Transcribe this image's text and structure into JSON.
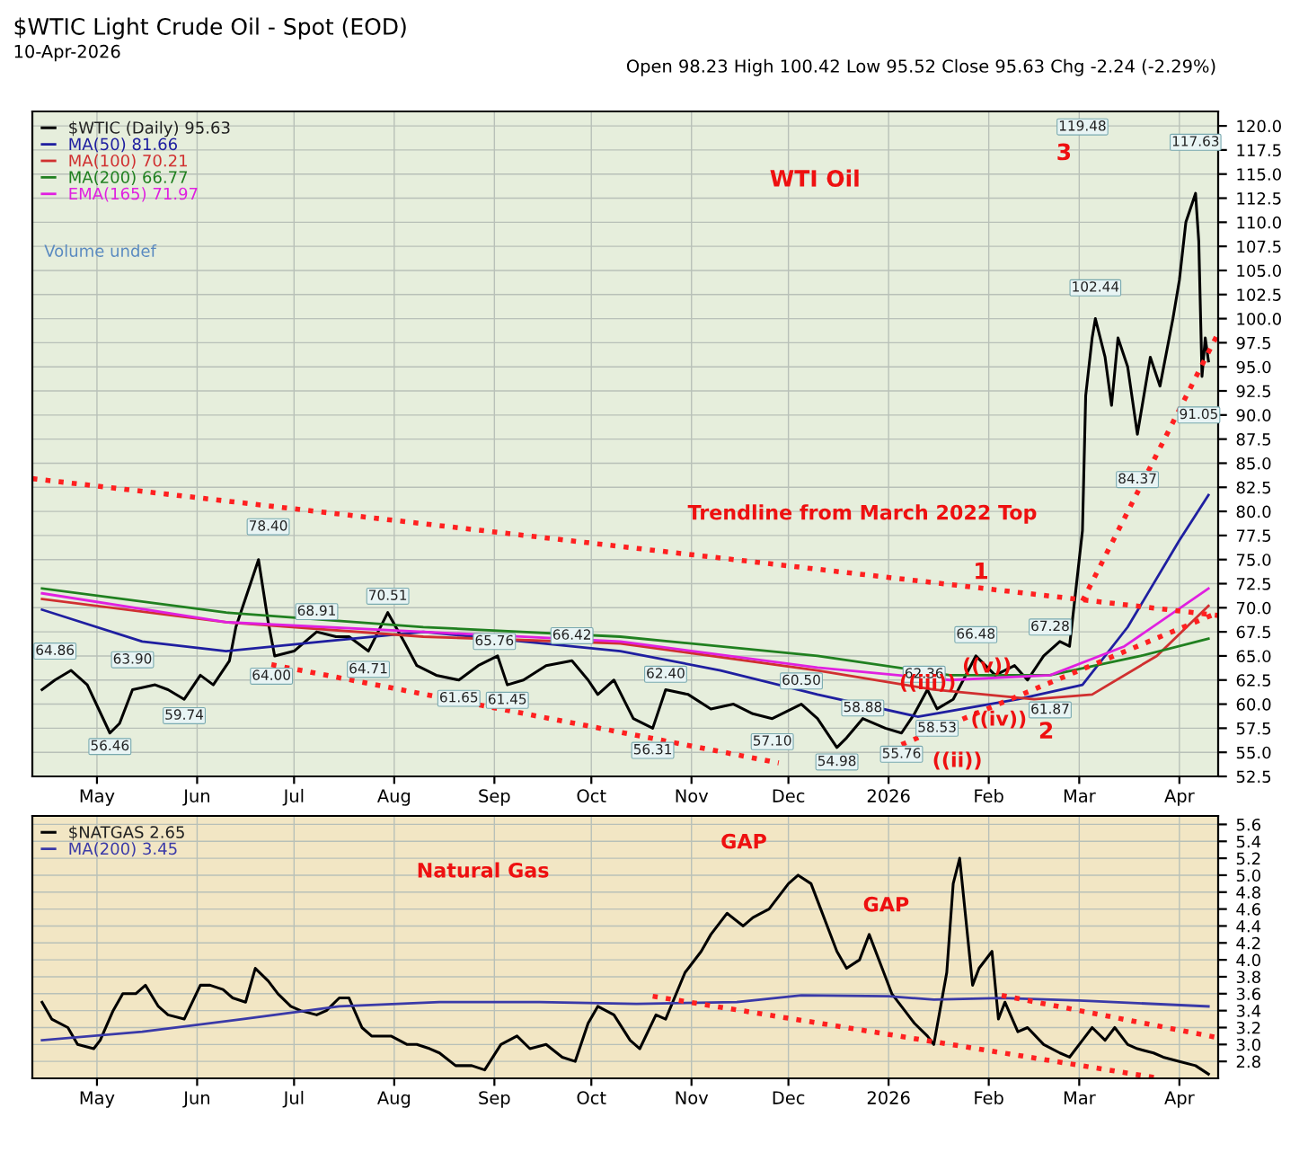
{
  "chart_data": [
    {
      "type": "line",
      "title": "$WTIC Light Crude Oil - Spot (EOD)",
      "subtitle": "10-Apr-2026",
      "xlim": [
        "2025-04-11",
        "2026-04-13"
      ],
      "xticks": [
        {
          "value": "2025-05-01",
          "label": "May"
        },
        {
          "value": "2025-06-01",
          "label": "Jun"
        },
        {
          "value": "2025-07-01",
          "label": "Jul"
        },
        {
          "value": "2025-08-01",
          "label": "Aug"
        },
        {
          "value": "2025-09-01",
          "label": "Sep"
        },
        {
          "value": "2025-10-01",
          "label": "Oct"
        },
        {
          "value": "2025-11-01",
          "label": "Nov"
        },
        {
          "value": "2025-12-01",
          "label": "Dec"
        },
        {
          "value": "2026-01-01",
          "label": "2026"
        },
        {
          "value": "2026-02-01",
          "label": "Feb"
        },
        {
          "value": "2026-03-01",
          "label": "Mar"
        },
        {
          "value": "2026-04-01",
          "label": "Apr"
        }
      ],
      "ylim": [
        52.5,
        121.5
      ],
      "yticks": [
        {
          "value": 52.5,
          "label": "52.5"
        },
        {
          "value": 55,
          "label": "55.0"
        },
        {
          "value": 57.5,
          "label": "57.5"
        },
        {
          "value": 60,
          "label": "60.0"
        },
        {
          "value": 62.5,
          "label": "62.5"
        },
        {
          "value": 65,
          "label": "65.0"
        },
        {
          "value": 67.5,
          "label": "67.5"
        },
        {
          "value": 70,
          "label": "70.0"
        },
        {
          "value": 72.5,
          "label": "72.5"
        },
        {
          "value": 75,
          "label": "75.0"
        },
        {
          "value": 77.5,
          "label": "77.5"
        },
        {
          "value": 80,
          "label": "80.0"
        },
        {
          "value": 82.5,
          "label": "82.5"
        },
        {
          "value": 85,
          "label": "85.0"
        },
        {
          "value": 87.5,
          "label": "87.5"
        },
        {
          "value": 90,
          "label": "90.0"
        },
        {
          "value": 92.5,
          "label": "92.5"
        },
        {
          "value": 95,
          "label": "95.0"
        },
        {
          "value": 97.5,
          "label": "97.5"
        },
        {
          "value": 100,
          "label": "100.0"
        },
        {
          "value": 102.5,
          "label": "102.5"
        },
        {
          "value": 105,
          "label": "105.0"
        },
        {
          "value": 107.5,
          "label": "107.5"
        },
        {
          "value": 110,
          "label": "110.0"
        },
        {
          "value": 112.5,
          "label": "112.5"
        },
        {
          "value": 115,
          "label": "115.0"
        },
        {
          "value": 117.5,
          "label": "117.5"
        },
        {
          "value": 120,
          "label": "120.0"
        }
      ],
      "grid": true,
      "legend": "top left",
      "series": [
        {
          "name": "$WTIC (Daily) 95.63",
          "color": "#000000",
          "x": [
            "2025-04-14",
            "2025-04-18",
            "2025-04-23",
            "2025-04-28",
            "2025-05-05",
            "2025-05-08",
            "2025-05-12",
            "2025-05-19",
            "2025-05-23",
            "2025-05-28",
            "2025-06-02",
            "2025-06-06",
            "2025-06-11",
            "2025-06-13",
            "2025-06-18",
            "2025-06-20",
            "2025-06-23",
            "2025-06-25",
            "2025-07-01",
            "2025-07-08",
            "2025-07-14",
            "2025-07-18",
            "2025-07-24",
            "2025-07-30",
            "2025-08-04",
            "2025-08-08",
            "2025-08-14",
            "2025-08-21",
            "2025-08-27",
            "2025-09-02",
            "2025-09-05",
            "2025-09-10",
            "2025-09-17",
            "2025-09-25",
            "2025-09-30",
            "2025-10-03",
            "2025-10-08",
            "2025-10-14",
            "2025-10-20",
            "2025-10-24",
            "2025-10-31",
            "2025-11-07",
            "2025-11-14",
            "2025-11-20",
            "2025-11-26",
            "2025-12-05",
            "2025-12-10",
            "2025-12-16",
            "2025-12-19",
            "2025-12-24",
            "2025-12-31",
            "2026-01-05",
            "2026-01-09",
            "2026-01-13",
            "2026-01-16",
            "2026-01-21",
            "2026-01-28",
            "2026-02-03",
            "2026-02-09",
            "2026-02-13",
            "2026-02-18",
            "2026-02-23",
            "2026-02-26",
            "2026-03-02",
            "2026-03-03",
            "2026-03-05",
            "2026-03-06",
            "2026-03-09",
            "2026-03-11",
            "2026-03-13",
            "2026-03-16",
            "2026-03-19",
            "2026-03-23",
            "2026-03-26",
            "2026-03-30",
            "2026-04-01",
            "2026-04-03",
            "2026-04-06",
            "2026-04-07",
            "2026-04-08",
            "2026-04-09",
            "2026-04-10"
          ],
          "values": [
            61.5,
            62.5,
            63.5,
            62,
            57,
            58,
            61.5,
            62,
            61.5,
            60.5,
            63,
            62,
            64.5,
            68,
            73,
            75,
            68.5,
            65,
            65.5,
            67.5,
            67,
            67,
            65.5,
            69.5,
            66.5,
            64,
            63,
            62.5,
            64,
            65,
            62,
            62.5,
            64,
            64.5,
            62.5,
            61,
            62.5,
            58.5,
            57.5,
            61.5,
            61,
            59.5,
            60,
            59,
            58.5,
            60,
            58.5,
            55.5,
            56.5,
            58.5,
            57.5,
            57,
            59,
            61.5,
            59.5,
            60.5,
            65,
            63,
            64,
            62.5,
            65,
            66.5,
            66,
            78,
            92,
            98,
            100,
            96,
            91,
            98,
            95,
            88,
            96,
            93,
            100,
            104,
            110,
            113,
            108,
            94,
            98,
            95.6
          ]
        },
        {
          "name": "MA(50) 81.66",
          "color": "#1f1fa0",
          "x": [
            "2025-04-14",
            "2025-05-15",
            "2025-06-10",
            "2025-07-10",
            "2025-08-10",
            "2025-09-10",
            "2025-10-10",
            "2025-11-10",
            "2025-12-10",
            "2026-01-10",
            "2026-02-10",
            "2026-03-02",
            "2026-03-16",
            "2026-04-01",
            "2026-04-10"
          ],
          "values": [
            69.8,
            66.5,
            65.5,
            66.5,
            67.5,
            66.5,
            65.5,
            63.5,
            61,
            58.7,
            60.5,
            62,
            68,
            77,
            81.7
          ]
        },
        {
          "name": "MA(100) 70.21",
          "color": "#d03030",
          "x": [
            "2025-04-14",
            "2025-06-10",
            "2025-08-10",
            "2025-10-10",
            "2025-12-10",
            "2026-01-15",
            "2026-02-15",
            "2026-03-05",
            "2026-03-25",
            "2026-04-10"
          ],
          "values": [
            70.9,
            68.5,
            67,
            66.3,
            63.5,
            61.5,
            60.5,
            61,
            65,
            70.2
          ]
        },
        {
          "name": "MA(200) 66.77",
          "color": "#208020",
          "x": [
            "2025-04-14",
            "2025-06-10",
            "2025-08-10",
            "2025-10-10",
            "2025-12-10",
            "2026-01-20",
            "2026-02-20",
            "2026-03-20",
            "2026-04-10"
          ],
          "values": [
            72,
            69.5,
            68,
            67,
            65,
            63,
            63,
            65,
            66.8
          ]
        },
        {
          "name": "EMA(165) 71.97",
          "color": "#e020e0",
          "x": [
            "2025-04-14",
            "2025-06-10",
            "2025-08-10",
            "2025-10-10",
            "2025-12-10",
            "2026-01-20",
            "2026-02-20",
            "2026-03-15",
            "2026-04-10"
          ],
          "values": [
            71.5,
            68.5,
            67.5,
            66.5,
            63.8,
            62.5,
            63,
            66,
            72
          ]
        },
        {
          "color": "#ff2020",
          "line_style": "dotted",
          "x": [
            "2025-04-11",
            "2026-04-13"
          ],
          "values": [
            83.4,
            69.2
          ]
        },
        {
          "color": "#ff2020",
          "line_style": "dotted",
          "x": [
            "2025-06-24",
            "2025-11-28"
          ],
          "values": [
            64.1,
            53.9
          ]
        },
        {
          "color": "#ff2020",
          "line_style": "dotted",
          "x": [
            "2026-01-05",
            "2026-04-13"
          ],
          "values": [
            55.8,
            69.5
          ]
        },
        {
          "color": "#ff2020",
          "line_style": "dotted",
          "x": [
            "2026-03-02",
            "2026-04-13"
          ],
          "values": [
            70.7,
            98.5
          ]
        }
      ],
      "annotations": [
        "Open 98.23 High 100.42 Low 95.52 Close 95.63 Chg -2.24 (-2.29%)",
        "Volume undef",
        {
          "text": "64.86",
          "x": "2025-04-18",
          "y": 65.5
        },
        {
          "text": "56.46",
          "x": "2025-05-05",
          "y": 55.6
        },
        {
          "text": "63.90",
          "x": "2025-05-12",
          "y": 64.6
        },
        {
          "text": "59.74",
          "x": "2025-05-28",
          "y": 58.8
        },
        {
          "text": "78.40",
          "x": "2025-06-23",
          "y": 78.4
        },
        {
          "text": "64.00",
          "x": "2025-06-24",
          "y": 62.9
        },
        {
          "text": "68.91",
          "x": "2025-07-08",
          "y": 69.6
        },
        {
          "text": "64.71",
          "x": "2025-07-24",
          "y": 63.6
        },
        {
          "text": "70.51",
          "x": "2025-07-30",
          "y": 71.2
        },
        {
          "text": "61.65",
          "x": "2025-08-21",
          "y": 60.6
        },
        {
          "text": "65.76",
          "x": "2025-09-01",
          "y": 66.5
        },
        {
          "text": "61.45",
          "x": "2025-09-05",
          "y": 60.4
        },
        {
          "text": "66.42",
          "x": "2025-09-25",
          "y": 67.1
        },
        {
          "text": "56.31",
          "x": "2025-10-20",
          "y": 55.2
        },
        {
          "text": "62.40",
          "x": "2025-10-24",
          "y": 63.1
        },
        {
          "text": "57.10",
          "x": "2025-11-26",
          "y": 56.1
        },
        {
          "text": "60.50",
          "x": "2025-12-05",
          "y": 62.4
        },
        {
          "text": "54.98",
          "x": "2025-12-16",
          "y": 54
        },
        {
          "text": "58.88",
          "x": "2025-12-24",
          "y": 59.6
        },
        {
          "text": "55.76",
          "x": "2026-01-05",
          "y": 54.8
        },
        {
          "text": "62.36",
          "x": "2026-01-12",
          "y": 63.1
        },
        {
          "text": "58.53",
          "x": "2026-01-16",
          "y": 57.5
        },
        {
          "text": "66.48",
          "x": "2026-01-28",
          "y": 67.2
        },
        {
          "text": "61.87",
          "x": "2026-02-20",
          "y": 59.4
        },
        {
          "text": "67.28",
          "x": "2026-02-20",
          "y": 68
        },
        {
          "text": "119.48",
          "x": "2026-03-02",
          "y": 119.9
        },
        {
          "text": "102.44",
          "x": "2026-03-06",
          "y": 103.2
        },
        {
          "text": "84.37",
          "x": "2026-03-19",
          "y": 83.3
        },
        {
          "text": "117.63",
          "x": "2026-04-06",
          "y": 118.3
        },
        {
          "text": "91.05",
          "x": "2026-04-07",
          "y": 90
        },
        "WTI Oil",
        "Trendline from March 2022 Top",
        "1",
        "2",
        "3",
        "((iii))",
        "((v))",
        "((iv))",
        "((ii))"
      ]
    },
    {
      "type": "line",
      "xlim": [
        "2025-04-11",
        "2026-04-13"
      ],
      "xticks": [
        {
          "value": "2025-05-01",
          "label": "May"
        },
        {
          "value": "2025-06-01",
          "label": "Jun"
        },
        {
          "value": "2025-07-01",
          "label": "Jul"
        },
        {
          "value": "2025-08-01",
          "label": "Aug"
        },
        {
          "value": "2025-09-01",
          "label": "Sep"
        },
        {
          "value": "2025-10-01",
          "label": "Oct"
        },
        {
          "value": "2025-11-01",
          "label": "Nov"
        },
        {
          "value": "2025-12-01",
          "label": "Dec"
        },
        {
          "value": "2026-01-01",
          "label": "2026"
        },
        {
          "value": "2026-02-01",
          "label": "Feb"
        },
        {
          "value": "2026-03-01",
          "label": "Mar"
        },
        {
          "value": "2026-04-01",
          "label": "Apr"
        }
      ],
      "ylim": [
        2.6,
        5.7
      ],
      "yticks": [
        {
          "value": 2.8,
          "label": "2.8"
        },
        {
          "value": 3.0,
          "label": "3.0"
        },
        {
          "value": 3.2,
          "label": "3.2"
        },
        {
          "value": 3.4,
          "label": "3.4"
        },
        {
          "value": 3.6,
          "label": "3.6"
        },
        {
          "value": 3.8,
          "label": "3.8"
        },
        {
          "value": 4.0,
          "label": "4.0"
        },
        {
          "value": 4.2,
          "label": "4.2"
        },
        {
          "value": 4.4,
          "label": "4.4"
        },
        {
          "value": 4.6,
          "label": "4.6"
        },
        {
          "value": 4.8,
          "label": "4.8"
        },
        {
          "value": 5.0,
          "label": "5.0"
        },
        {
          "value": 5.2,
          "label": "5.2"
        },
        {
          "value": 5.4,
          "label": "5.4"
        },
        {
          "value": 5.6,
          "label": "5.6"
        }
      ],
      "grid": true,
      "legend": "top left",
      "series": [
        {
          "name": "$NATGAS 2.65",
          "color": "#000000",
          "x": [
            "2025-04-14",
            "2025-04-17",
            "2025-04-22",
            "2025-04-25",
            "2025-04-30",
            "2025-05-02",
            "2025-05-06",
            "2025-05-09",
            "2025-05-13",
            "2025-05-16",
            "2025-05-20",
            "2025-05-23",
            "2025-05-28",
            "2025-06-02",
            "2025-06-05",
            "2025-06-09",
            "2025-06-12",
            "2025-06-16",
            "2025-06-19",
            "2025-06-23",
            "2025-06-26",
            "2025-06-30",
            "2025-07-03",
            "2025-07-08",
            "2025-07-11",
            "2025-07-15",
            "2025-07-18",
            "2025-07-22",
            "2025-07-25",
            "2025-07-31",
            "2025-08-05",
            "2025-08-08",
            "2025-08-12",
            "2025-08-15",
            "2025-08-20",
            "2025-08-25",
            "2025-08-29",
            "2025-09-03",
            "2025-09-08",
            "2025-09-12",
            "2025-09-17",
            "2025-09-22",
            "2025-09-26",
            "2025-09-30",
            "2025-10-03",
            "2025-10-08",
            "2025-10-13",
            "2025-10-16",
            "2025-10-21",
            "2025-10-24",
            "2025-10-30",
            "2025-11-04",
            "2025-11-07",
            "2025-11-12",
            "2025-11-17",
            "2025-11-20",
            "2025-11-25",
            "2025-12-01",
            "2025-12-04",
            "2025-12-08",
            "2025-12-11",
            "2025-12-16",
            "2025-12-19",
            "2025-12-23",
            "2025-12-26",
            "2025-12-30",
            "2026-01-02",
            "2026-01-06",
            "2026-01-09",
            "2026-01-13",
            "2026-01-15",
            "2026-01-19",
            "2026-01-21",
            "2026-01-23",
            "2026-01-27",
            "2026-01-29",
            "2026-02-02",
            "2026-02-04",
            "2026-02-06",
            "2026-02-10",
            "2026-02-13",
            "2026-02-18",
            "2026-02-23",
            "2026-02-26",
            "2026-03-02",
            "2026-03-05",
            "2026-03-09",
            "2026-03-12",
            "2026-03-16",
            "2026-03-19",
            "2026-03-24",
            "2026-03-27",
            "2026-04-01",
            "2026-04-06",
            "2026-04-10"
          ],
          "values": [
            3.5,
            3.3,
            3.2,
            3.0,
            2.95,
            3.05,
            3.4,
            3.6,
            3.6,
            3.7,
            3.45,
            3.35,
            3.3,
            3.7,
            3.7,
            3.65,
            3.55,
            3.5,
            3.9,
            3.75,
            3.6,
            3.45,
            3.4,
            3.35,
            3.4,
            3.55,
            3.55,
            3.2,
            3.1,
            3.1,
            3.0,
            3.0,
            2.95,
            2.9,
            2.75,
            2.75,
            2.7,
            3.0,
            3.1,
            2.95,
            3.0,
            2.85,
            2.8,
            3.25,
            3.45,
            3.35,
            3.05,
            2.95,
            3.35,
            3.3,
            3.85,
            4.1,
            4.3,
            4.55,
            4.4,
            4.5,
            4.6,
            4.9,
            5.0,
            4.9,
            4.6,
            4.1,
            3.9,
            4.0,
            4.3,
            3.9,
            3.6,
            3.4,
            3.25,
            3.1,
            3.0,
            3.85,
            4.9,
            5.2,
            3.7,
            3.9,
            4.1,
            3.3,
            3.5,
            3.15,
            3.2,
            3.0,
            2.9,
            2.85,
            3.05,
            3.2,
            3.05,
            3.2,
            3.0,
            2.95,
            2.9,
            2.85,
            2.8,
            2.75,
            2.65
          ]
        },
        {
          "name": "MA(200) 3.45",
          "color": "#3a3aa8",
          "x": [
            "2025-04-14",
            "2025-05-15",
            "2025-06-15",
            "2025-07-15",
            "2025-08-15",
            "2025-09-15",
            "2025-10-15",
            "2025-11-15",
            "2025-12-05",
            "2026-01-01",
            "2026-01-15",
            "2026-02-05",
            "2026-03-01",
            "2026-04-10"
          ],
          "values": [
            3.05,
            3.15,
            3.3,
            3.45,
            3.5,
            3.5,
            3.48,
            3.5,
            3.58,
            3.57,
            3.53,
            3.55,
            3.52,
            3.45
          ]
        },
        {
          "color": "#ff2020",
          "line_style": "dotted",
          "x": [
            "2025-10-20",
            "2026-03-26"
          ],
          "values": [
            3.57,
            2.6
          ]
        },
        {
          "color": "#ff2020",
          "line_style": "dotted",
          "x": [
            "2026-02-05",
            "2026-04-13"
          ],
          "values": [
            3.58,
            3.08
          ]
        }
      ],
      "annotations": [
        "Natural Gas",
        "GAP",
        "GAP"
      ]
    }
  ]
}
